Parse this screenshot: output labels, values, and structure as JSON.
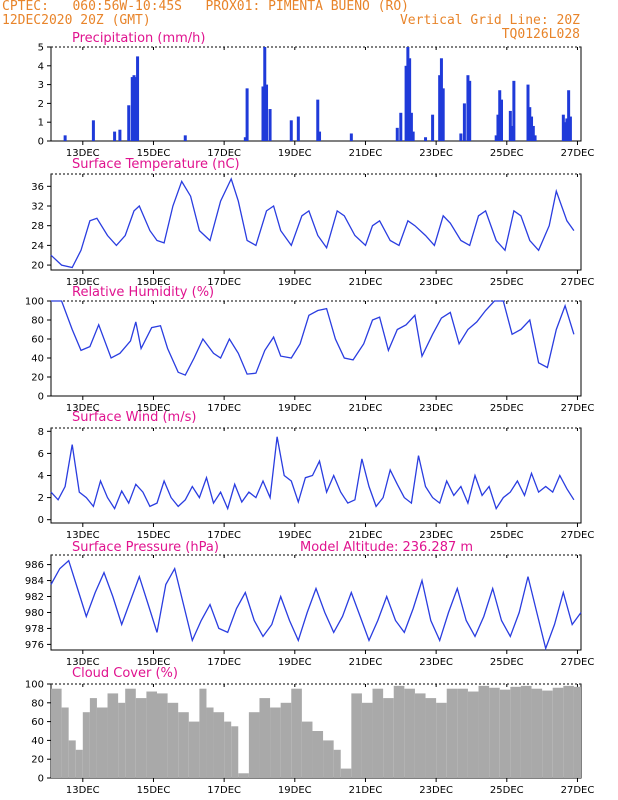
{
  "header": {
    "line1": "CPTEC:   060:56W-10:45S   PROX01: PIMENTA BUENO (RO)",
    "line2_left": "12DEC2020 20Z (GMT)",
    "line2_right": "Vertical Grid Line: 20Z",
    "line3_right": "TQ0126L028"
  },
  "colors": {
    "line": "#2a3de0",
    "bar": "#1f3ad9",
    "cloud": "#a9a9a9",
    "title": "#e0138f",
    "header": "#e8842a"
  },
  "x_ticks": [
    "13DEC",
    "15DEC",
    "17DEC",
    "19DEC",
    "21DEC",
    "23DEC",
    "25DEC",
    "27DEC"
  ],
  "chart_data": [
    {
      "type": "bar",
      "title": "Precipitation (mm/h)",
      "ylim": [
        0,
        5
      ],
      "yticks": [
        0,
        1,
        2,
        3,
        4,
        5
      ],
      "x_days": [
        0.4,
        1.2,
        1.8,
        1.95,
        2.2,
        2.3,
        2.35,
        2.4,
        2.45,
        3.8,
        5.5,
        5.55,
        6.0,
        6.05,
        6.1,
        6.2,
        6.8,
        7.0,
        7.55,
        7.6,
        8.5,
        9.8,
        9.9,
        10.05,
        10.1,
        10.15,
        10.2,
        10.25,
        10.6,
        10.8,
        11.0,
        11.05,
        11.1,
        11.6,
        11.7,
        11.8,
        11.85,
        12.6,
        12.65,
        12.7,
        12.75,
        13.0,
        13.05,
        13.1,
        13.5,
        13.55,
        13.6,
        13.65,
        13.7,
        14.5,
        14.55,
        14.6,
        14.65,
        14.7
      ],
      "values": [
        0.3,
        1.1,
        0.5,
        0.6,
        1.9,
        3.4,
        3.5,
        3.4,
        4.5,
        0.3,
        0.2,
        2.8,
        2.9,
        5.0,
        3.0,
        1.7,
        1.1,
        1.3,
        2.2,
        0.5,
        0.4,
        0.7,
        1.5,
        4.0,
        5.0,
        4.4,
        1.5,
        0.5,
        0.2,
        1.4,
        3.5,
        4.4,
        2.8,
        0.4,
        2.0,
        3.5,
        3.2,
        0.3,
        1.4,
        2.7,
        2.2,
        1.6,
        0.8,
        3.2,
        3.0,
        1.8,
        1.3,
        0.8,
        0.3,
        1.4,
        1.0,
        1.2,
        2.7,
        1.3
      ]
    },
    {
      "type": "line",
      "title": "Surface Temperature (nC)",
      "ylim": [
        19,
        38.5
      ],
      "yticks": [
        20,
        24,
        28,
        32,
        36
      ],
      "x_days": [
        0,
        0.3,
        0.6,
        0.85,
        1.1,
        1.3,
        1.6,
        1.85,
        2.1,
        2.35,
        2.5,
        2.8,
        3.0,
        3.2,
        3.45,
        3.7,
        3.95,
        4.2,
        4.5,
        4.8,
        5.1,
        5.3,
        5.55,
        5.8,
        6.1,
        6.3,
        6.5,
        6.8,
        7.1,
        7.3,
        7.55,
        7.8,
        8.1,
        8.3,
        8.6,
        8.9,
        9.1,
        9.3,
        9.6,
        9.85,
        10.1,
        10.3,
        10.6,
        10.85,
        11.1,
        11.3,
        11.6,
        11.85,
        12.1,
        12.3,
        12.6,
        12.85,
        13.1,
        13.3,
        13.55,
        13.8,
        14.1,
        14.3,
        14.6,
        14.8
      ],
      "values": [
        22,
        20,
        19.5,
        23,
        29,
        29.5,
        26,
        24,
        26,
        31,
        32,
        27,
        25,
        24.5,
        32,
        37,
        34,
        27,
        25,
        33,
        37.5,
        33,
        25,
        24,
        31,
        32,
        27,
        24,
        30,
        31,
        26,
        23.5,
        31,
        30,
        26,
        24,
        28,
        29,
        25,
        24,
        29,
        28,
        26,
        24,
        30,
        28.5,
        25,
        24,
        30,
        31,
        25,
        23,
        31,
        30,
        25,
        23,
        28,
        35,
        29,
        27
      ]
    },
    {
      "type": "line",
      "title": "Relative Humidity (%)",
      "ylim": [
        0,
        100
      ],
      "yticks": [
        0,
        20,
        40,
        60,
        80,
        100
      ],
      "x_days": [
        0,
        0.3,
        0.6,
        0.85,
        1.1,
        1.35,
        1.7,
        1.95,
        2.25,
        2.4,
        2.55,
        2.85,
        3.1,
        3.3,
        3.6,
        3.8,
        4.05,
        4.3,
        4.6,
        4.8,
        5.05,
        5.3,
        5.55,
        5.8,
        6.05,
        6.3,
        6.5,
        6.8,
        7.05,
        7.3,
        7.55,
        7.8,
        8.05,
        8.3,
        8.55,
        8.85,
        9.1,
        9.3,
        9.55,
        9.8,
        10.05,
        10.3,
        10.5,
        10.8,
        11.05,
        11.3,
        11.55,
        11.8,
        12.05,
        12.3,
        12.55,
        12.8,
        13.05,
        13.3,
        13.55,
        13.8,
        14.05,
        14.3,
        14.55,
        14.8
      ],
      "values": [
        100,
        100,
        70,
        48,
        52,
        75,
        40,
        45,
        58,
        78,
        50,
        72,
        74,
        50,
        25,
        22,
        40,
        60,
        45,
        40,
        60,
        45,
        23,
        24,
        48,
        62,
        42,
        40,
        55,
        85,
        90,
        92,
        60,
        40,
        38,
        55,
        80,
        83,
        48,
        70,
        75,
        85,
        42,
        65,
        82,
        88,
        55,
        70,
        78,
        90,
        100,
        100,
        65,
        70,
        80,
        35,
        30,
        70,
        95,
        65
      ]
    },
    {
      "type": "line",
      "title": "Surface Wind (m/s)",
      "ylim": [
        -0.3,
        8.3
      ],
      "yticks": [
        0,
        2,
        4,
        6,
        8
      ],
      "x_days": [
        0,
        0.2,
        0.4,
        0.6,
        0.8,
        1.0,
        1.2,
        1.4,
        1.6,
        1.8,
        2.0,
        2.2,
        2.4,
        2.6,
        2.8,
        3.0,
        3.2,
        3.4,
        3.6,
        3.8,
        4.0,
        4.2,
        4.4,
        4.6,
        4.8,
        5.0,
        5.2,
        5.4,
        5.6,
        5.8,
        6.0,
        6.2,
        6.4,
        6.6,
        6.8,
        7.0,
        7.2,
        7.4,
        7.6,
        7.8,
        8.0,
        8.2,
        8.4,
        8.6,
        8.8,
        9.0,
        9.2,
        9.4,
        9.6,
        9.8,
        10.0,
        10.2,
        10.4,
        10.6,
        10.8,
        11.0,
        11.2,
        11.4,
        11.6,
        11.8,
        12.0,
        12.2,
        12.4,
        12.6,
        12.8,
        13.0,
        13.2,
        13.4,
        13.6,
        13.8,
        14.0,
        14.2,
        14.4,
        14.6,
        14.8
      ],
      "values": [
        2.5,
        1.8,
        3.0,
        6.8,
        2.5,
        2.0,
        1.2,
        3.5,
        2.0,
        1.0,
        2.6,
        1.5,
        3.2,
        2.5,
        1.2,
        1.5,
        3.5,
        2.0,
        1.2,
        1.8,
        3.0,
        2.0,
        3.8,
        1.5,
        2.5,
        1.0,
        3.2,
        1.6,
        2.5,
        2.0,
        3.5,
        2.0,
        7.5,
        4.0,
        3.5,
        1.6,
        3.8,
        4.0,
        5.3,
        2.5,
        4.0,
        2.5,
        1.5,
        1.8,
        5.5,
        3.0,
        1.2,
        2.0,
        4.5,
        3.2,
        2.0,
        1.5,
        5.8,
        3.0,
        2.0,
        1.5,
        3.5,
        2.2,
        3.0,
        1.5,
        4.0,
        2.2,
        3.0,
        1.0,
        2.0,
        2.5,
        3.5,
        2.2,
        4.2,
        2.5,
        3.0,
        2.5,
        4.0,
        2.8,
        1.8
      ]
    },
    {
      "type": "line",
      "title": "Surface Pressure (hPa)",
      "annotation": "Model Altitude: 236.287 m",
      "ylim": [
        975.3,
        987.2
      ],
      "yticks": [
        976,
        978,
        980,
        982,
        984,
        986
      ],
      "x_days": [
        0,
        0.25,
        0.5,
        0.75,
        1.0,
        1.25,
        1.5,
        1.75,
        2.0,
        2.25,
        2.5,
        2.75,
        3.0,
        3.25,
        3.5,
        3.75,
        4.0,
        4.25,
        4.5,
        4.75,
        5.0,
        5.25,
        5.5,
        5.75,
        6.0,
        6.25,
        6.5,
        6.75,
        7.0,
        7.25,
        7.5,
        7.75,
        8.0,
        8.25,
        8.5,
        8.75,
        9.0,
        9.25,
        9.5,
        9.75,
        10.0,
        10.25,
        10.5,
        10.75,
        11.0,
        11.25,
        11.5,
        11.75,
        12.0,
        12.25,
        12.5,
        12.75,
        13.0,
        13.25,
        13.5,
        13.75,
        14.0,
        14.25,
        14.5,
        14.75,
        15.0
      ],
      "values": [
        983.5,
        985.5,
        986.5,
        983,
        979.5,
        982.5,
        985,
        982,
        978.5,
        981.5,
        984.5,
        981,
        977.5,
        983.5,
        985.5,
        981,
        976.5,
        979,
        981,
        978,
        977.5,
        980.5,
        982.5,
        979,
        977,
        978.5,
        982,
        979,
        976.5,
        980,
        983,
        980,
        977.5,
        979.5,
        982.5,
        979.5,
        976.5,
        979,
        982,
        979,
        977.5,
        980.5,
        984,
        979,
        976.5,
        980,
        983,
        979,
        977,
        979.5,
        983,
        979,
        977,
        980,
        984.5,
        980,
        975.5,
        978.5,
        982.5,
        978.5,
        980
      ]
    },
    {
      "type": "bar",
      "title": "Cloud Cover (%)",
      "ylim": [
        0,
        100
      ],
      "yticks": [
        0,
        20,
        40,
        60,
        80,
        100
      ],
      "x_days": [
        0,
        0.3,
        0.5,
        0.7,
        0.9,
        1.1,
        1.3,
        1.6,
        1.9,
        2.1,
        2.4,
        2.7,
        3.0,
        3.3,
        3.6,
        3.9,
        4.2,
        4.4,
        4.6,
        4.9,
        5.1,
        5.3,
        5.6,
        5.9,
        6.2,
        6.5,
        6.8,
        7.1,
        7.4,
        7.7,
        8.0,
        8.2,
        8.5,
        8.8,
        9.1,
        9.4,
        9.7,
        10.0,
        10.3,
        10.6,
        10.9,
        11.2,
        11.5,
        11.8,
        12.1,
        12.4,
        12.7,
        13.0,
        13.3,
        13.6,
        13.9,
        14.2,
        14.5,
        14.8
      ],
      "values": [
        95,
        75,
        40,
        30,
        70,
        85,
        75,
        90,
        80,
        95,
        85,
        92,
        90,
        80,
        70,
        60,
        95,
        75,
        70,
        60,
        55,
        5,
        70,
        85,
        75,
        80,
        95,
        60,
        50,
        40,
        30,
        10,
        90,
        80,
        95,
        85,
        98,
        95,
        90,
        85,
        80,
        95,
        95,
        92,
        98,
        96,
        94,
        97,
        98,
        95,
        93,
        96,
        98,
        97
      ]
    }
  ]
}
